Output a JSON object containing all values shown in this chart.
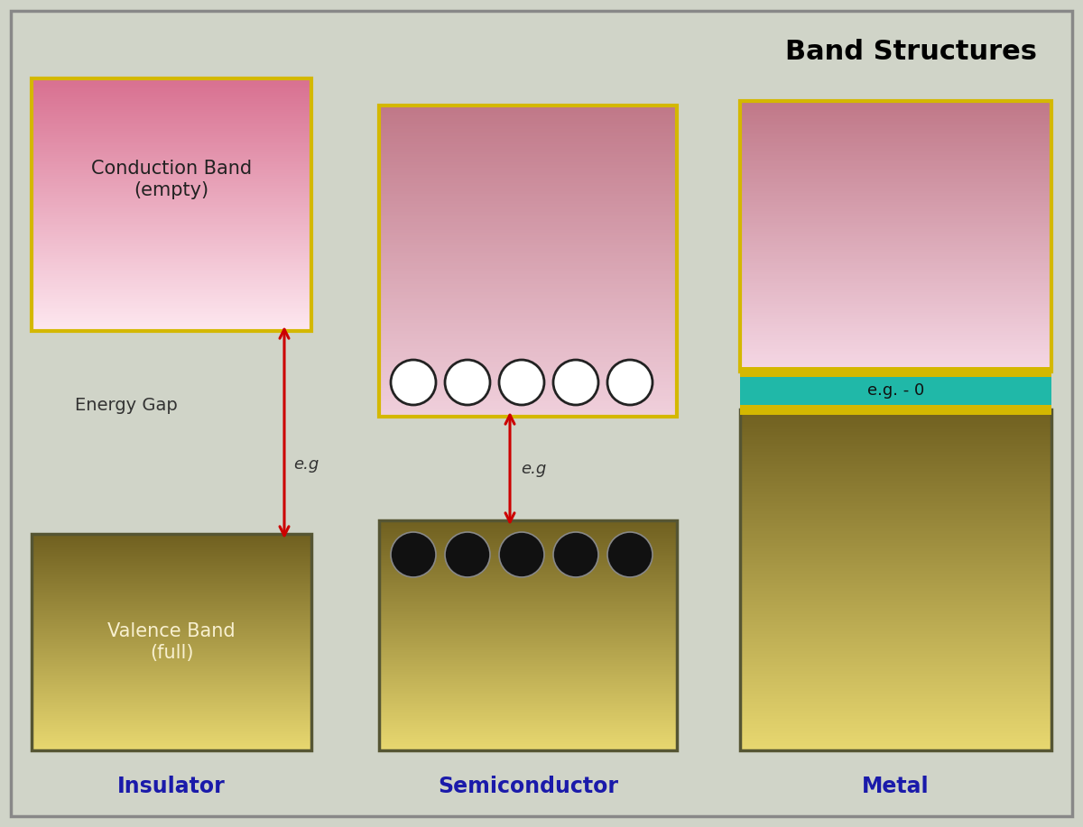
{
  "title": "Band Structures",
  "background_color": "#d0d4c8",
  "border_color": "#555555",
  "gold_border": "#d4b800",
  "label_insulator": "Insulator",
  "label_semiconductor": "Semiconductor",
  "label_metal": "Metal",
  "label_conduction": "Conduction Band\n(empty)",
  "label_valence": "Valence Band\n(full)",
  "label_energy_gap": "Energy Gap",
  "label_eg": "e.g",
  "label_eg2": "e.g",
  "label_eg3": "e.g. - 0",
  "arrow_color": "#cc0000",
  "teal_color": "#20b8a8",
  "blue_label": "#1a1aaa"
}
